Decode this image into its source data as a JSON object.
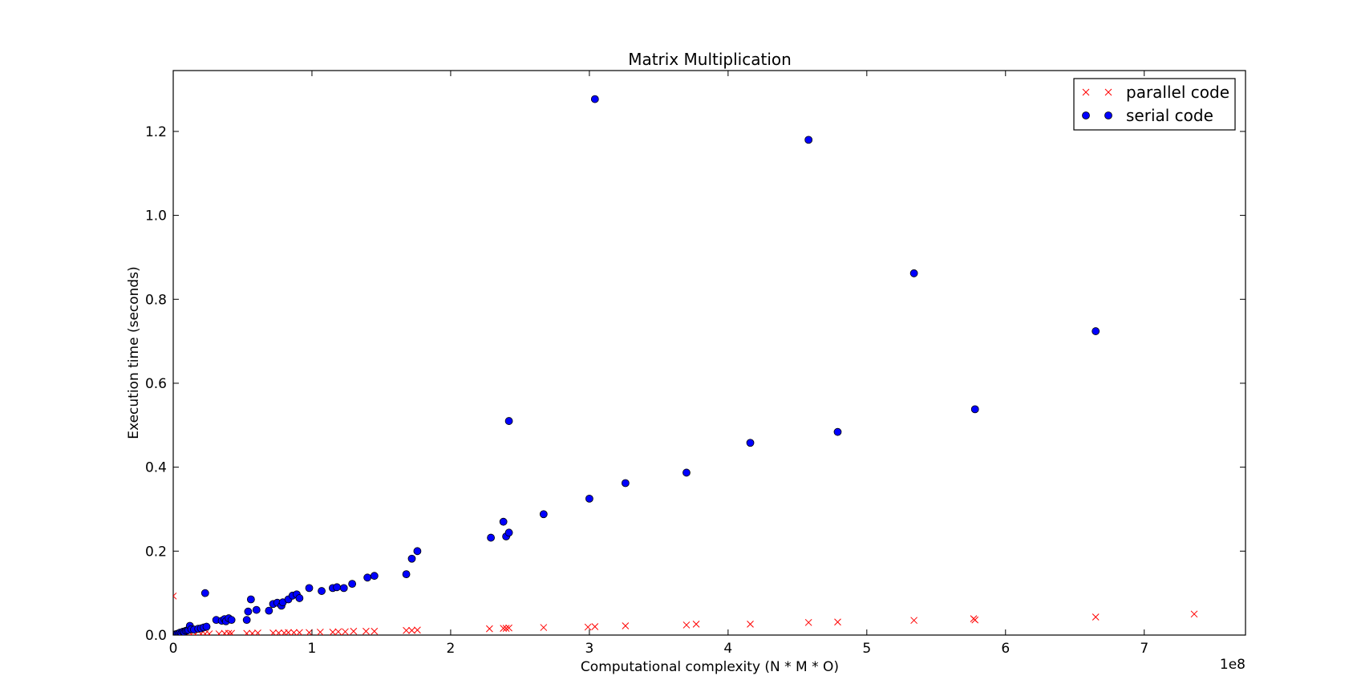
{
  "chart_data": {
    "type": "scatter",
    "title": "Matrix Multiplication",
    "xlabel": "Computational complexity (N * M * O)",
    "ylabel": "Execution time (seconds)",
    "x_offset_label": "1e8",
    "xlim": [
      0,
      7.73
    ],
    "ylim": [
      0,
      1.345
    ],
    "x_ticks": [
      0,
      1,
      2,
      3,
      4,
      5,
      6,
      7
    ],
    "x_tick_labels": [
      "0",
      "1",
      "2",
      "3",
      "4",
      "5",
      "6",
      "7"
    ],
    "y_ticks": [
      0.0,
      0.2,
      0.4,
      0.6,
      0.8,
      1.0,
      1.2
    ],
    "y_tick_labels": [
      "0.0",
      "0.2",
      "0.4",
      "0.6",
      "0.8",
      "1.0",
      "1.2"
    ],
    "grid": false,
    "legend_position": "top-right",
    "series": [
      {
        "name": "parallel code",
        "marker": "x",
        "color": "#ff0000",
        "points": [
          [
            0.0,
            0.093
          ],
          [
            0.01,
            0.0
          ],
          [
            0.03,
            0.001
          ],
          [
            0.05,
            0.001
          ],
          [
            0.07,
            0.001
          ],
          [
            0.1,
            0.002
          ],
          [
            0.13,
            0.002
          ],
          [
            0.16,
            0.002
          ],
          [
            0.2,
            0.003
          ],
          [
            0.23,
            0.003
          ],
          [
            0.26,
            0.003
          ],
          [
            0.33,
            0.003
          ],
          [
            0.37,
            0.004
          ],
          [
            0.4,
            0.004
          ],
          [
            0.42,
            0.004
          ],
          [
            0.53,
            0.004
          ],
          [
            0.57,
            0.004
          ],
          [
            0.61,
            0.005
          ],
          [
            0.72,
            0.005
          ],
          [
            0.76,
            0.005
          ],
          [
            0.8,
            0.005
          ],
          [
            0.83,
            0.006
          ],
          [
            0.87,
            0.006
          ],
          [
            0.91,
            0.006
          ],
          [
            0.98,
            0.006
          ],
          [
            1.06,
            0.007
          ],
          [
            1.15,
            0.007
          ],
          [
            1.19,
            0.008
          ],
          [
            1.24,
            0.008
          ],
          [
            1.3,
            0.009
          ],
          [
            1.39,
            0.009
          ],
          [
            1.45,
            0.009
          ],
          [
            1.68,
            0.011
          ],
          [
            1.72,
            0.011
          ],
          [
            1.76,
            0.012
          ],
          [
            2.28,
            0.015
          ],
          [
            2.38,
            0.016
          ],
          [
            2.4,
            0.016
          ],
          [
            2.42,
            0.017
          ],
          [
            2.67,
            0.018
          ],
          [
            2.99,
            0.019
          ],
          [
            3.04,
            0.02
          ],
          [
            3.26,
            0.022
          ],
          [
            3.7,
            0.024
          ],
          [
            3.77,
            0.026
          ],
          [
            4.16,
            0.026
          ],
          [
            4.58,
            0.03
          ],
          [
            4.79,
            0.031
          ],
          [
            5.34,
            0.035
          ],
          [
            5.77,
            0.039
          ],
          [
            5.78,
            0.036
          ],
          [
            6.65,
            0.043
          ],
          [
            7.36,
            0.05
          ]
        ]
      },
      {
        "name": "serial code",
        "marker": "o",
        "color": "#0000ff",
        "points": [
          [
            0.01,
            0.001
          ],
          [
            0.02,
            0.002
          ],
          [
            0.03,
            0.003
          ],
          [
            0.04,
            0.004
          ],
          [
            0.05,
            0.006
          ],
          [
            0.06,
            0.005
          ],
          [
            0.07,
            0.008
          ],
          [
            0.08,
            0.007
          ],
          [
            0.09,
            0.01
          ],
          [
            0.1,
            0.011
          ],
          [
            0.11,
            0.012
          ],
          [
            0.12,
            0.022
          ],
          [
            0.13,
            0.014
          ],
          [
            0.15,
            0.013
          ],
          [
            0.18,
            0.015
          ],
          [
            0.2,
            0.016
          ],
          [
            0.22,
            0.018
          ],
          [
            0.24,
            0.02
          ],
          [
            0.23,
            0.1
          ],
          [
            0.31,
            0.036
          ],
          [
            0.35,
            0.034
          ],
          [
            0.37,
            0.038
          ],
          [
            0.38,
            0.033
          ],
          [
            0.4,
            0.04
          ],
          [
            0.42,
            0.036
          ],
          [
            0.53,
            0.036
          ],
          [
            0.54,
            0.056
          ],
          [
            0.56,
            0.085
          ],
          [
            0.6,
            0.06
          ],
          [
            0.69,
            0.058
          ],
          [
            0.72,
            0.074
          ],
          [
            0.75,
            0.077
          ],
          [
            0.78,
            0.07
          ],
          [
            0.79,
            0.078
          ],
          [
            0.83,
            0.085
          ],
          [
            0.86,
            0.094
          ],
          [
            0.89,
            0.097
          ],
          [
            0.91,
            0.088
          ],
          [
            0.98,
            0.112
          ],
          [
            1.07,
            0.105
          ],
          [
            1.15,
            0.112
          ],
          [
            1.18,
            0.114
          ],
          [
            1.23,
            0.112
          ],
          [
            1.29,
            0.122
          ],
          [
            1.4,
            0.137
          ],
          [
            1.45,
            0.141
          ],
          [
            1.68,
            0.145
          ],
          [
            1.72,
            0.182
          ],
          [
            1.76,
            0.2
          ],
          [
            2.29,
            0.232
          ],
          [
            2.38,
            0.27
          ],
          [
            2.4,
            0.235
          ],
          [
            2.42,
            0.51
          ],
          [
            2.42,
            0.244
          ],
          [
            2.67,
            0.288
          ],
          [
            3.0,
            0.325
          ],
          [
            3.04,
            1.277
          ],
          [
            3.26,
            0.362
          ],
          [
            3.7,
            0.387
          ],
          [
            4.16,
            0.458
          ],
          [
            4.58,
            1.18
          ],
          [
            4.79,
            0.484
          ],
          [
            5.34,
            0.862
          ],
          [
            5.78,
            0.538
          ],
          [
            6.65,
            0.724
          ]
        ]
      }
    ]
  }
}
